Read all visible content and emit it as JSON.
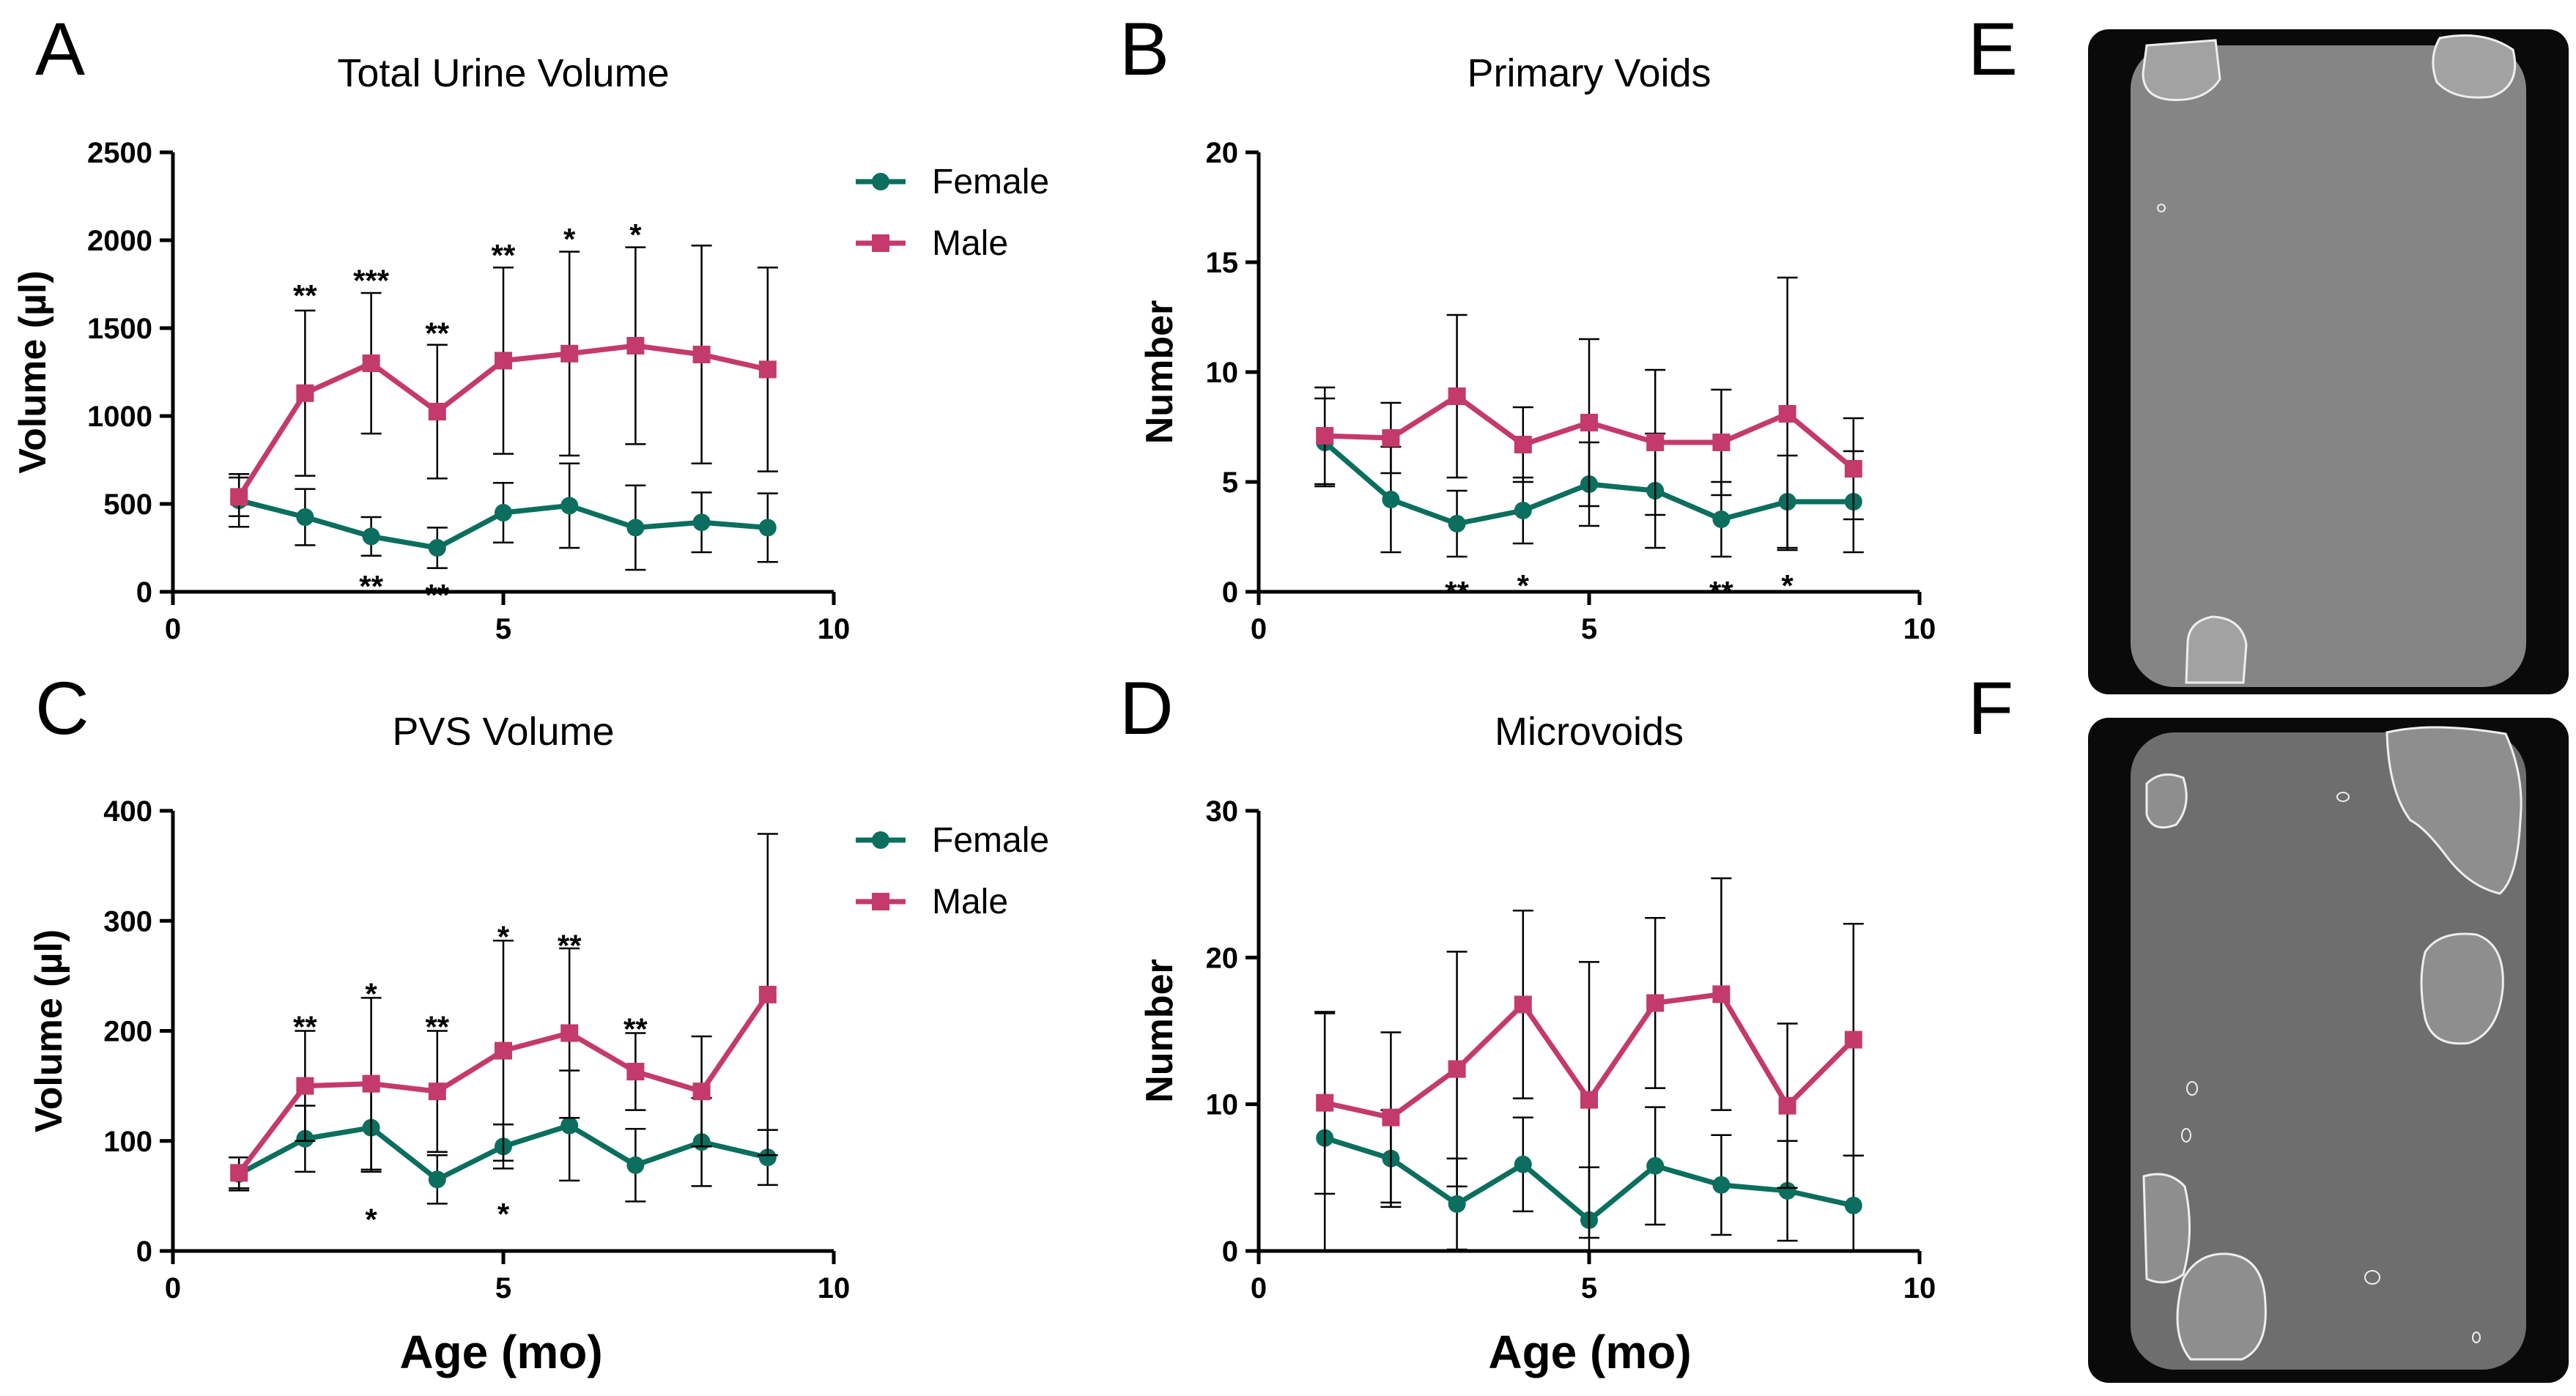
{
  "panel_letters": {
    "A": "A",
    "B": "B",
    "C": "C",
    "D": "D",
    "E": "E",
    "F": "F"
  },
  "colors": {
    "female": "#0b6e5e",
    "male": "#c33a6b",
    "axis": "#000000",
    "errorbar": "#000000"
  },
  "x_axis_label": "Age (mo)",
  "legend": {
    "female": "Female",
    "male": "Male"
  },
  "chart_data": [
    {
      "id": "A",
      "type": "line",
      "title": "Total Urine Volume",
      "ylabel": "Volume (µl)",
      "xlim": [
        0,
        10
      ],
      "ylim": [
        0,
        2500
      ],
      "xticks": [
        0,
        5,
        10
      ],
      "yticks": [
        0,
        500,
        1000,
        1500,
        2000,
        2500
      ],
      "series": [
        {
          "name": "Female",
          "x": [
            1,
            2,
            3,
            4,
            5,
            6,
            7,
            8,
            9
          ],
          "y": [
            520,
            425,
            315,
            250,
            450,
            490,
            365,
            395,
            365
          ],
          "err": [
            150,
            160,
            110,
            115,
            170,
            240,
            240,
            170,
            195
          ]
        },
        {
          "name": "Male",
          "x": [
            1,
            2,
            3,
            4,
            5,
            6,
            7,
            8,
            9
          ],
          "y": [
            540,
            1130,
            1300,
            1025,
            1315,
            1355,
            1400,
            1350,
            1265
          ],
          "err": [
            110,
            470,
            400,
            380,
            530,
            580,
            560,
            620,
            580
          ]
        }
      ],
      "annotations": [
        {
          "x": 2,
          "y": 1725,
          "text": "**"
        },
        {
          "x": 3,
          "y": 1810,
          "text": "***"
        },
        {
          "x": 4,
          "y": 1510,
          "text": "**"
        },
        {
          "x": 5,
          "y": 1955,
          "text": "**"
        },
        {
          "x": 6,
          "y": 2045,
          "text": "*"
        },
        {
          "x": 7,
          "y": 2070,
          "text": "*"
        },
        {
          "x": 3,
          "y": 70,
          "text": "**"
        },
        {
          "x": 4,
          "y": 20,
          "text": "**"
        }
      ]
    },
    {
      "id": "B",
      "type": "line",
      "title": "Primary Voids",
      "ylabel": "Number",
      "xlim": [
        0,
        10
      ],
      "ylim": [
        0,
        20
      ],
      "xticks": [
        0,
        5,
        10
      ],
      "yticks": [
        0,
        5,
        10,
        15,
        20
      ],
      "series": [
        {
          "name": "Female",
          "x": [
            1,
            2,
            3,
            4,
            5,
            6,
            7,
            8,
            9
          ],
          "y": [
            6.8,
            4.2,
            3.1,
            3.7,
            4.9,
            4.6,
            3.3,
            4.1,
            4.1
          ],
          "err": [
            2.0,
            2.4,
            1.5,
            1.5,
            1.9,
            2.6,
            1.7,
            2.1,
            2.3
          ]
        },
        {
          "name": "Male",
          "x": [
            1,
            2,
            3,
            4,
            5,
            6,
            7,
            8,
            9
          ],
          "y": [
            7.1,
            7.0,
            8.9,
            6.7,
            7.7,
            6.8,
            6.8,
            8.1,
            5.6
          ],
          "err": [
            2.2,
            1.6,
            3.7,
            1.7,
            3.8,
            3.3,
            2.4,
            6.2,
            2.3
          ]
        }
      ],
      "annotations": [
        {
          "x": 3,
          "y": 0.3,
          "text": "**"
        },
        {
          "x": 4,
          "y": 0.6,
          "text": "*"
        },
        {
          "x": 7,
          "y": 0.3,
          "text": "**"
        },
        {
          "x": 8,
          "y": 0.6,
          "text": "*"
        }
      ]
    },
    {
      "id": "C",
      "type": "line",
      "title": "PVS Volume",
      "ylabel": "Volume (µl)",
      "xlim": [
        0,
        10
      ],
      "ylim": [
        0,
        400
      ],
      "xticks": [
        0,
        5,
        10
      ],
      "yticks": [
        0,
        100,
        200,
        300,
        400
      ],
      "series": [
        {
          "name": "Female",
          "x": [
            1,
            2,
            3,
            4,
            5,
            6,
            7,
            8,
            9
          ],
          "y": [
            70,
            102,
            112,
            65,
            95,
            114,
            78,
            99,
            85
          ],
          "err": [
            15,
            30,
            40,
            22,
            20,
            50,
            33,
            40,
            25
          ]
        },
        {
          "name": "Male",
          "x": [
            1,
            2,
            3,
            4,
            5,
            6,
            7,
            8,
            9
          ],
          "y": [
            71,
            150,
            152,
            145,
            182,
            198,
            163,
            145,
            233
          ],
          "err": [
            14,
            50,
            78,
            55,
            100,
            77,
            35,
            50,
            146
          ]
        }
      ],
      "annotations": [
        {
          "x": 2,
          "y": 210,
          "text": "**"
        },
        {
          "x": 3,
          "y": 240,
          "text": "*"
        },
        {
          "x": 4,
          "y": 210,
          "text": "**"
        },
        {
          "x": 5,
          "y": 292,
          "text": "*"
        },
        {
          "x": 6,
          "y": 284,
          "text": "**"
        },
        {
          "x": 7,
          "y": 208,
          "text": "**"
        },
        {
          "x": 3,
          "y": 35,
          "text": "*"
        },
        {
          "x": 5,
          "y": 40,
          "text": "*"
        }
      ]
    },
    {
      "id": "D",
      "type": "line",
      "title": "Microvoids",
      "ylabel": "Number",
      "xlim": [
        0,
        10
      ],
      "ylim": [
        0,
        30
      ],
      "xticks": [
        0,
        5,
        10
      ],
      "yticks": [
        0,
        10,
        20,
        30
      ],
      "series": [
        {
          "name": "Female",
          "x": [
            1,
            2,
            3,
            4,
            5,
            6,
            7,
            8,
            9
          ],
          "y": [
            7.7,
            6.3,
            3.2,
            5.9,
            2.1,
            5.8,
            4.5,
            4.1,
            3.1
          ],
          "err": [
            8.5,
            3.3,
            3.1,
            3.2,
            3.6,
            4.0,
            3.4,
            3.4,
            3.4
          ]
        },
        {
          "name": "Male",
          "x": [
            1,
            2,
            3,
            4,
            5,
            6,
            7,
            8,
            9
          ],
          "y": [
            10.1,
            9.1,
            12.4,
            16.8,
            10.3,
            16.9,
            17.5,
            9.9,
            14.4
          ],
          "err": [
            6.2,
            5.8,
            8.0,
            6.4,
            9.4,
            5.8,
            7.9,
            5.6,
            7.9
          ]
        }
      ],
      "annotations": []
    }
  ]
}
